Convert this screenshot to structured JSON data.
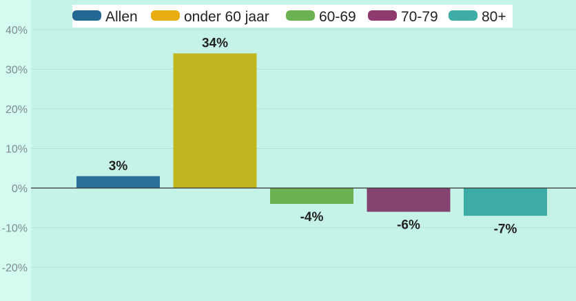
{
  "chart_data": {
    "type": "bar",
    "categories": [
      "Allen",
      "onder 60 jaar",
      "60-69",
      "70-79",
      "80+"
    ],
    "values": [
      3,
      34,
      -4,
      -6,
      -7
    ],
    "data_labels": [
      "3%",
      "34%",
      "-4%",
      "-6%",
      "-7%"
    ],
    "colors": [
      "#2a7199",
      "#c2b720",
      "#6bb253",
      "#83426f",
      "#3eaca6"
    ],
    "legend_colors": [
      "#226892",
      "#e8ad12",
      "#6bb253",
      "#8f3a6f",
      "#3eaca6"
    ],
    "ylim": [
      -25,
      45
    ],
    "yticks": [
      -20,
      -10,
      0,
      10,
      20,
      30,
      40
    ],
    "ytick_labels": [
      "-20%",
      "-10%",
      "0%",
      "10%",
      "20%",
      "30%",
      "40%"
    ],
    "grid": true,
    "legend_position": "top-center",
    "title": "",
    "xlabel": "",
    "ylabel": ""
  }
}
